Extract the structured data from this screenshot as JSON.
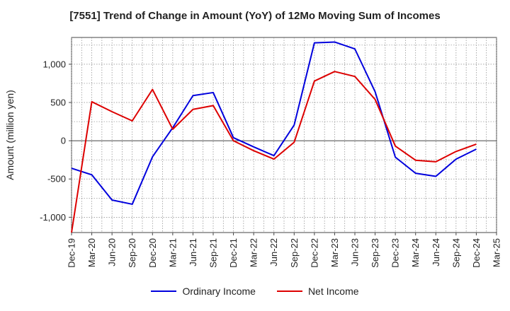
{
  "chart_data": {
    "type": "line",
    "title": "[7551]  Trend of Change in Amount (YoY) of 12Mo Moving Sum of Incomes",
    "ylabel": "Amount (million yen)",
    "xlabel": "",
    "ylim": [
      -1200,
      1350
    ],
    "yticks": [
      1000,
      500,
      0,
      -500,
      -1000
    ],
    "ytick_labels": [
      "1,000",
      "500",
      "0",
      "-500",
      "-1,000"
    ],
    "categories": [
      "Dec-19",
      "Mar-20",
      "Jun-20",
      "Sep-20",
      "Dec-20",
      "Mar-21",
      "Jun-21",
      "Sep-21",
      "Dec-21",
      "Mar-22",
      "Jun-22",
      "Sep-22",
      "Dec-22",
      "Mar-23",
      "Jun-23",
      "Sep-23",
      "Dec-23",
      "Mar-24",
      "Jun-24",
      "Sep-24",
      "Dec-24",
      "Mar-25"
    ],
    "grid": true,
    "legend_position": "bottom",
    "series": [
      {
        "name": "Ordinary Income",
        "color": "#0000dd",
        "values": [
          -360,
          -445,
          -775,
          -830,
          -210,
          170,
          590,
          630,
          40,
          -80,
          -195,
          205,
          1280,
          1290,
          1200,
          640,
          -215,
          -425,
          -465,
          -240,
          -110,
          null
        ]
      },
      {
        "name": "Net Income",
        "color": "#dd0000",
        "values": [
          -1200,
          510,
          380,
          260,
          670,
          150,
          410,
          460,
          0,
          -130,
          -240,
          -20,
          780,
          905,
          840,
          540,
          -70,
          -255,
          -275,
          -140,
          -45,
          null
        ]
      }
    ]
  }
}
